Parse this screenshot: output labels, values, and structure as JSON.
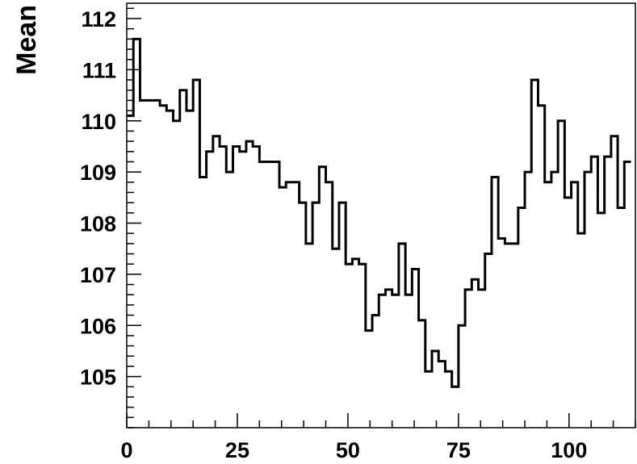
{
  "chart_data": {
    "type": "histogram",
    "title": "",
    "xlabel": "",
    "ylabel": "Mean",
    "xlim": [
      0,
      115
    ],
    "ylim": [
      104.0,
      112.3
    ],
    "bin_width": 1.5,
    "x_ticks": [
      0,
      25,
      50,
      75,
      100
    ],
    "y_ticks": [
      105,
      106,
      107,
      108,
      109,
      110,
      111,
      112
    ],
    "grid": false,
    "legend": "none",
    "line_color": "#000000",
    "values": [
      110.1,
      111.6,
      110.4,
      110.4,
      110.4,
      110.3,
      110.2,
      110.0,
      110.6,
      110.2,
      110.8,
      108.9,
      109.4,
      109.7,
      109.5,
      109.0,
      109.5,
      109.4,
      109.6,
      109.5,
      109.2,
      109.2,
      109.2,
      108.7,
      108.8,
      108.8,
      108.4,
      107.6,
      108.4,
      109.1,
      108.8,
      107.5,
      108.4,
      107.2,
      107.3,
      107.2,
      105.9,
      106.2,
      106.6,
      106.7,
      106.6,
      107.6,
      106.6,
      107.1,
      106.1,
      105.1,
      105.5,
      105.3,
      105.1,
      104.8,
      106.0,
      106.7,
      106.9,
      106.7,
      107.4,
      108.9,
      107.7,
      107.6,
      107.6,
      108.3,
      109.0,
      110.8,
      110.3,
      108.8,
      109.0,
      110.0,
      108.5,
      108.8,
      107.8,
      109.0,
      109.3,
      108.2,
      109.3,
      109.7,
      108.3,
      109.2
    ]
  }
}
